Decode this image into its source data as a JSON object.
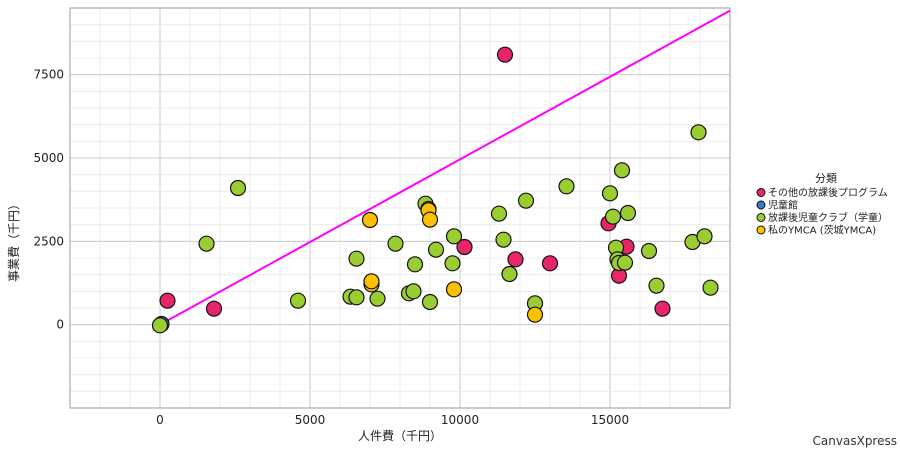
{
  "chart_data": {
    "type": "scatter",
    "xlabel": "人件費（千円）",
    "ylabel": "事業費（千円）",
    "xlim": [
      -3000,
      19000
    ],
    "ylim": [
      -2500,
      9500
    ],
    "x_ticks": [
      0,
      5000,
      10000,
      15000
    ],
    "y_ticks": [
      0,
      2500,
      5000,
      7500
    ],
    "grid": true,
    "legend_position": "right",
    "legend_title": "分類",
    "series": [
      {
        "name": "その他の放課後プログラム",
        "color": "#e8246a",
        "points": [
          {
            "x": 250,
            "y": 720
          },
          {
            "x": 1800,
            "y": 480
          },
          {
            "x": 10150,
            "y": 2330
          },
          {
            "x": 11500,
            "y": 8100
          },
          {
            "x": 11850,
            "y": 1960
          },
          {
            "x": 13000,
            "y": 1840
          },
          {
            "x": 14950,
            "y": 3040
          },
          {
            "x": 15300,
            "y": 1470
          },
          {
            "x": 15550,
            "y": 2340
          },
          {
            "x": 16750,
            "y": 480
          }
        ]
      },
      {
        "name": "児童館",
        "color": "#3a77c4",
        "points": [
          {
            "x": 50,
            "y": 20
          }
        ]
      },
      {
        "name": "放課後児童クラブ（学童）",
        "color": "#9acd32",
        "points": [
          {
            "x": 0,
            "y": -20
          },
          {
            "x": 1550,
            "y": 2430
          },
          {
            "x": 2600,
            "y": 4100
          },
          {
            "x": 4600,
            "y": 720
          },
          {
            "x": 6350,
            "y": 840
          },
          {
            "x": 6550,
            "y": 820
          },
          {
            "x": 6550,
            "y": 1980
          },
          {
            "x": 7250,
            "y": 780
          },
          {
            "x": 7850,
            "y": 2430
          },
          {
            "x": 8300,
            "y": 940
          },
          {
            "x": 8450,
            "y": 1000
          },
          {
            "x": 8500,
            "y": 1810
          },
          {
            "x": 8850,
            "y": 3630
          },
          {
            "x": 9000,
            "y": 680
          },
          {
            "x": 9200,
            "y": 2250
          },
          {
            "x": 9750,
            "y": 1840
          },
          {
            "x": 9800,
            "y": 2650
          },
          {
            "x": 11300,
            "y": 3330
          },
          {
            "x": 11450,
            "y": 2550
          },
          {
            "x": 11650,
            "y": 1520
          },
          {
            "x": 12200,
            "y": 3720
          },
          {
            "x": 12500,
            "y": 640
          },
          {
            "x": 13550,
            "y": 4150
          },
          {
            "x": 15000,
            "y": 3940
          },
          {
            "x": 15100,
            "y": 3240
          },
          {
            "x": 15200,
            "y": 2310
          },
          {
            "x": 15250,
            "y": 1960
          },
          {
            "x": 15300,
            "y": 1850
          },
          {
            "x": 15400,
            "y": 4630
          },
          {
            "x": 15500,
            "y": 1860
          },
          {
            "x": 15600,
            "y": 3350
          },
          {
            "x": 16300,
            "y": 2210
          },
          {
            "x": 16550,
            "y": 1170
          },
          {
            "x": 17750,
            "y": 2480
          },
          {
            "x": 17950,
            "y": 5770
          },
          {
            "x": 18150,
            "y": 2650
          },
          {
            "x": 18350,
            "y": 1110
          }
        ]
      },
      {
        "name": "私のYMCA (茨城YMCA)",
        "color": "#ffc000",
        "points": [
          {
            "x": 7000,
            "y": 3140
          },
          {
            "x": 7050,
            "y": 1210
          },
          {
            "x": 7050,
            "y": 1300
          },
          {
            "x": 8950,
            "y": 3470
          },
          {
            "x": 8950,
            "y": 3430
          },
          {
            "x": 9000,
            "y": 3150
          },
          {
            "x": 9800,
            "y": 1060
          },
          {
            "x": 12500,
            "y": 300
          }
        ]
      }
    ],
    "trend_line": {
      "color": "#ff00ff",
      "from": {
        "x": 0,
        "y": 0
      },
      "to": {
        "x": 19000,
        "y": 9420
      }
    }
  },
  "watermark": "CanvasXpress"
}
